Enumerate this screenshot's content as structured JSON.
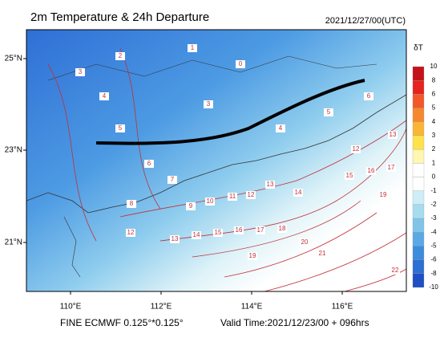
{
  "header": {
    "title": "2m Temperature & 24h Departure",
    "date": "2021/12/27/00(UTC)"
  },
  "axes": {
    "lat_labels": [
      "25°N",
      "23°N",
      "21°N"
    ],
    "lon_labels": [
      "110°E",
      "112°E",
      "114°E",
      "116°E"
    ]
  },
  "colorbar": {
    "title": "δT",
    "ticks": [
      10,
      8,
      6,
      5,
      4,
      3,
      2,
      1,
      0,
      -1,
      -2,
      -3,
      -4,
      -5,
      -6,
      -8,
      -10
    ],
    "colors": [
      "#c4121b",
      "#e7231f",
      "#f2582a",
      "#f7872f",
      "#fbb536",
      "#fde24c",
      "#fff6b0",
      "#ffffff",
      "#ffffff",
      "#cdeef6",
      "#a6dcef",
      "#80c4ea",
      "#5aa9e4",
      "#3d8cdc",
      "#2d6fd2",
      "#1f4fc4"
    ]
  },
  "contour_labels": [
    13,
    14,
    15,
    16,
    17,
    18,
    19,
    20,
    21,
    22,
    19,
    17,
    16,
    15,
    14,
    13,
    12,
    11,
    10,
    9,
    12,
    13,
    12,
    8,
    7,
    6,
    5,
    4,
    3,
    2,
    1,
    0,
    3,
    4,
    5,
    6
  ],
  "footer": {
    "model": "FINE ECMWF 0.125°*0.125°",
    "valid": "Valid Time:2021/12/23/00 + 096hrs"
  }
}
